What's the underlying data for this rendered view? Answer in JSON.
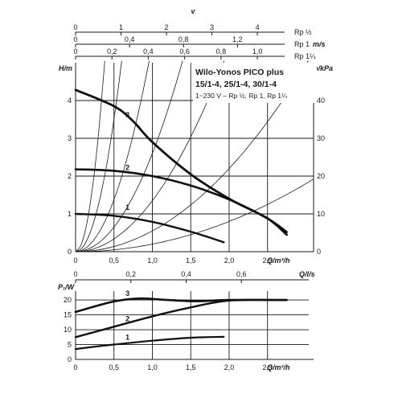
{
  "chart_data": [
    {
      "type": "line",
      "title_lines": [
        "Wilo-Yonos PICO plus",
        "15/1-4, 25/1-4, 30/1-4"
      ],
      "subtitle": "1~230 V – Rp ½, Rp 1, Rp 1¼",
      "xlabel": "Q/m³/h",
      "ylabel": "H/m",
      "ylabel_right": "p/kPa",
      "xlim": [
        0,
        3.1
      ],
      "ylim": [
        0,
        5
      ],
      "ylim_right": [
        0,
        50
      ],
      "x_ticks": [
        "0",
        "0,5",
        "1,0",
        "1,5",
        "2,0",
        "2,5"
      ],
      "y_ticks": [
        "0",
        "1",
        "2",
        "3",
        "4"
      ],
      "y_ticks_right": [
        "0",
        "10",
        "20",
        "30",
        "40"
      ],
      "grid": true,
      "series": [
        {
          "name": "1",
          "x": [
            0,
            0.5,
            1.0,
            1.5,
            1.93
          ],
          "y": [
            1.0,
            0.95,
            0.79,
            0.53,
            0.25
          ]
        },
        {
          "name": "2",
          "x": [
            0,
            0.5,
            1.0,
            1.5,
            2.0,
            2.5,
            2.75
          ],
          "y": [
            2.18,
            2.14,
            2.0,
            1.75,
            1.38,
            0.88,
            0.52
          ]
        },
        {
          "name": "3",
          "x": [
            0,
            0.5,
            0.75,
            1.0,
            1.5,
            2.0,
            2.5,
            2.75
          ],
          "y": [
            4.28,
            3.85,
            3.45,
            2.9,
            2.05,
            1.4,
            0.88,
            0.45
          ]
        }
      ],
      "label_positions": [
        {
          "name": "1",
          "x": 0.65,
          "y": 1.0
        },
        {
          "name": "2",
          "x": 0.65,
          "y": 2.05
        },
        {
          "name": "3",
          "x": 0.65,
          "y": 3.45
        }
      ],
      "pipe_curve_coefficients": [
        35,
        14,
        5.5,
        2.6,
        1.35,
        0.55,
        0.2
      ],
      "top_scales": [
        {
          "unit": "v",
          "label": "Rp ½",
          "max": 4.6,
          "ticks": [
            "0",
            "1",
            "2",
            "3",
            "4"
          ]
        },
        {
          "unit": "m/s",
          "label": "Rp 1",
          "max": 1.55,
          "ticks": [
            "0",
            "0,4",
            "0,8",
            "1,2"
          ]
        },
        {
          "unit": "",
          "label": "Rp 1¼",
          "max": 1.15,
          "ticks": [
            "0",
            "0,2",
            "0,4",
            "0,6",
            "0,8",
            "1,0"
          ]
        }
      ],
      "top_scale_tick_values": [
        [
          0,
          1,
          2,
          3,
          4
        ],
        [
          0,
          0.4,
          0.8,
          1.2
        ],
        [
          0,
          0.2,
          0.4,
          0.6,
          0.8,
          1.0
        ]
      ]
    },
    {
      "type": "line",
      "xlabel": "Q/m³/h",
      "ylabel": "P₁/W",
      "top_xlabel": "Q/l/s",
      "xlim": [
        0,
        3.1
      ],
      "ylim": [
        0,
        23
      ],
      "x_ticks": [
        "0",
        "0,5",
        "1,0",
        "1,5",
        "2,0",
        "2,5"
      ],
      "y_ticks": [
        "0",
        "5",
        "10",
        "15",
        "20"
      ],
      "top_x_ticks": [
        "0",
        "0,2",
        "0,4",
        "0,6"
      ],
      "grid": true,
      "series": [
        {
          "name": "1",
          "x": [
            0,
            0.5,
            1.0,
            1.5,
            1.93
          ],
          "y": [
            3.5,
            5.0,
            6.3,
            7.3,
            7.6
          ]
        },
        {
          "name": "2",
          "x": [
            0,
            0.5,
            1.0,
            1.5,
            2.0,
            2.75
          ],
          "y": [
            7.5,
            11.0,
            14.5,
            17.5,
            19.8,
            20.0
          ]
        },
        {
          "name": "3",
          "x": [
            0,
            0.5,
            0.85,
            1.2,
            1.6,
            2.0,
            2.75
          ],
          "y": [
            16.0,
            19.5,
            20.5,
            20.0,
            19.6,
            20.0,
            20.0
          ]
        }
      ],
      "label_positions": [
        {
          "name": "1",
          "x": 0.65,
          "y": 5.8
        },
        {
          "name": "2",
          "x": 0.65,
          "y": 12.0
        },
        {
          "name": "3",
          "x": 0.65,
          "y": 20.5
        }
      ],
      "top_x_tick_values": [
        0,
        0.2,
        0.4,
        0.6
      ]
    }
  ]
}
